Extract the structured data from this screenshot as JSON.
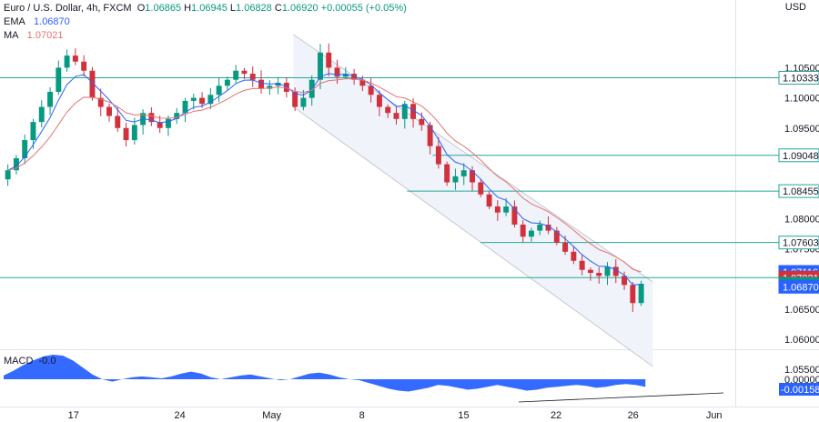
{
  "header": {
    "symbol": "Euro / U.S. Dollar, 4h, FXCM",
    "open_label": "O",
    "open": "1.06865",
    "high_label": "H",
    "high": "1.06945",
    "low_label": "L",
    "low": "1.06828",
    "close_label": "C",
    "close": "1.06920",
    "change": "+0.00055 (+0.05%)",
    "ema_label": "EMA",
    "ema_value": "1.06870",
    "ma_label": "MA",
    "ma_value": "1.07021",
    "currency": "USD"
  },
  "macd": {
    "label": "MACD",
    "value": "-0.0"
  },
  "colors": {
    "up": "#089981",
    "down": "#d1313d",
    "ema": "#2962ff",
    "ma": "#e57373",
    "level": "#26a69a",
    "channel": "#f0f3fa",
    "macd_fill": "#2962ff"
  },
  "chart_data": {
    "type": "candlestick",
    "title": "Euro / U.S. Dollar, 4h, FXCM",
    "y_range": [
      1.0585,
      1.1135
    ],
    "y_ticks": [
      "1.10500",
      "1.10000",
      "1.09500",
      "1.08000",
      "1.07500",
      "1.06500",
      "1.06000",
      "1.05500"
    ],
    "x_ticks": [
      "17",
      "24",
      "May",
      "8",
      "15",
      "22",
      "26",
      "Jun"
    ],
    "price_tags": [
      {
        "label": "1.10333",
        "value": 1.10333,
        "style": "level"
      },
      {
        "label": "1.09048",
        "value": 1.09048,
        "style": "level"
      },
      {
        "label": "1.08455",
        "value": 1.08455,
        "style": "level"
      },
      {
        "label": "1.07603",
        "value": 1.07603,
        "style": "level"
      },
      {
        "label": "1.07116",
        "value": 1.07116,
        "style": "ema"
      },
      {
        "label": "1.07021",
        "value": 1.07021,
        "style": "ma"
      },
      {
        "label": "1.06920",
        "value": 1.0692,
        "style": "up"
      },
      {
        "label": "1.06870",
        "value": 1.0687,
        "style": "ema"
      }
    ],
    "horizontal_levels": [
      {
        "value": 1.10333,
        "from": 0.0,
        "to": 1.0
      },
      {
        "value": 1.09048,
        "from": 0.59,
        "to": 1.0
      },
      {
        "value": 1.08455,
        "from": 0.555,
        "to": 1.0
      },
      {
        "value": 1.07603,
        "from": 0.655,
        "to": 1.0
      },
      {
        "value": 1.07021,
        "from": 0.0,
        "to": 1.0
      }
    ],
    "channel": {
      "start_x": 0.4,
      "end_x": 0.89,
      "upper": [
        1.1105,
        1.0695
      ],
      "lower": [
        1.0985,
        1.0555
      ]
    },
    "close_path": [
      1.088,
      1.09,
      1.093,
      1.096,
      1.0985,
      1.101,
      1.105,
      1.107,
      1.106,
      1.1045,
      1.1,
      1.0985,
      1.097,
      1.095,
      1.093,
      1.0955,
      1.0975,
      1.096,
      1.095,
      1.0965,
      1.0975,
      1.0995,
      1.1,
      1.099,
      1.1005,
      1.102,
      1.103,
      1.1045,
      1.104,
      1.103,
      1.1015,
      1.102,
      1.1025,
      1.101,
      1.0985,
      1.1,
      1.103,
      1.1075,
      1.105,
      1.1035,
      1.104,
      1.103,
      1.102,
      1.1005,
      1.0985,
      1.0975,
      1.0965,
      1.099,
      1.0965,
      1.0955,
      1.092,
      1.089,
      1.086,
      1.087,
      1.088,
      1.086,
      1.084,
      1.082,
      1.081,
      1.082,
      1.079,
      1.077,
      1.078,
      1.079,
      1.078,
      1.076,
      1.0745,
      1.073,
      1.0715,
      1.071,
      1.0705,
      1.072,
      1.0705,
      1.069,
      1.066,
      1.0692
    ],
    "macd_path": [
      0.0008,
      0.0018,
      0.003,
      0.004,
      0.0048,
      0.0052,
      0.005,
      0.004,
      0.0025,
      0.001,
      0.0,
      -0.0005,
      0.0,
      0.0004,
      0.0006,
      0.0004,
      0.0002,
      0.0006,
      0.0012,
      0.0016,
      0.0012,
      0.0004,
      0.0,
      0.0004,
      0.0008,
      0.001,
      0.0006,
      0.0002,
      -0.0002,
      0.0,
      0.0006,
      0.0012,
      0.0014,
      0.001,
      0.0004,
      0.0,
      -0.0002,
      -0.0008,
      -0.0014,
      -0.002,
      -0.0024,
      -0.0026,
      -0.0022,
      -0.0018,
      -0.0012,
      -0.0014,
      -0.0018,
      -0.0022,
      -0.002,
      -0.0016,
      -0.0012,
      -0.0016,
      -0.002,
      -0.0024,
      -0.0022,
      -0.0018,
      -0.0016,
      -0.0014,
      -0.0012,
      -0.0014,
      -0.0018,
      -0.0016,
      -0.0012,
      -0.001,
      -0.0012,
      -0.0016
    ],
    "macd_ticks": [
      "0.00000"
    ],
    "macd_tag": "-0.00158"
  }
}
